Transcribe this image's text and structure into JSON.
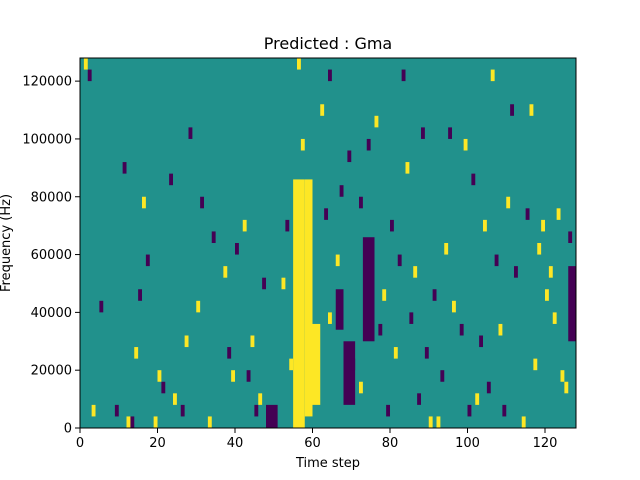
{
  "chart_data": {
    "type": "heatmap",
    "title": "Predicted : Gma",
    "xlabel": "Time step",
    "ylabel": "Frequency (Hz)",
    "xlim": [
      0,
      128
    ],
    "ylim": [
      0,
      128000
    ],
    "x_ticks": [
      0,
      20,
      40,
      60,
      80,
      100,
      120
    ],
    "x_tick_labels": [
      "0",
      "20",
      "40",
      "60",
      "80",
      "100",
      "120"
    ],
    "y_ticks": [
      0,
      20000,
      40000,
      60000,
      80000,
      100000,
      120000
    ],
    "y_tick_labels": [
      "0",
      "20000",
      "40000",
      "60000",
      "80000",
      "100000",
      "120000"
    ],
    "grid": false,
    "colormap": "viridis",
    "colors": {
      "low": "#440154",
      "mid": "#21918c",
      "high": "#fde725",
      "axes": "#000000"
    },
    "rows": 32,
    "cols": 128,
    "background_level": "mid",
    "high_bands": [
      {
        "x": [
          55,
          58
        ],
        "y": [
          0,
          86000
        ]
      },
      {
        "x": [
          58,
          60
        ],
        "y": [
          4000,
          86000
        ]
      },
      {
        "x": [
          60,
          62
        ],
        "y": [
          8000,
          36000
        ]
      }
    ],
    "low_bands": [
      {
        "x": [
          48,
          51
        ],
        "y": [
          0,
          8000
        ]
      },
      {
        "x": [
          66,
          68
        ],
        "y": [
          34000,
          48000
        ]
      },
      {
        "x": [
          68,
          71
        ],
        "y": [
          8000,
          30000
        ]
      },
      {
        "x": [
          73,
          76
        ],
        "y": [
          30000,
          66000
        ]
      },
      {
        "x": [
          126,
          128
        ],
        "y": [
          30000,
          56000
        ]
      }
    ],
    "high_cells": [
      [
        1,
        126000
      ],
      [
        3,
        6000
      ],
      [
        12,
        2000
      ],
      [
        14,
        26000
      ],
      [
        16,
        78000
      ],
      [
        19,
        2000
      ],
      [
        20,
        18000
      ],
      [
        24,
        10000
      ],
      [
        27,
        30000
      ],
      [
        30,
        42000
      ],
      [
        33,
        2000
      ],
      [
        37,
        54000
      ],
      [
        39,
        16000
      ],
      [
        42,
        70000
      ],
      [
        44,
        30000
      ],
      [
        46,
        10000
      ],
      [
        52,
        50000
      ],
      [
        54,
        22000
      ],
      [
        56,
        126000
      ],
      [
        57,
        98000
      ],
      [
        62,
        110000
      ],
      [
        64,
        38000
      ],
      [
        66,
        58000
      ],
      [
        72,
        14000
      ],
      [
        76,
        104000
      ],
      [
        78,
        46000
      ],
      [
        81,
        26000
      ],
      [
        84,
        90000
      ],
      [
        86,
        54000
      ],
      [
        90,
        2000
      ],
      [
        92,
        2000
      ],
      [
        94,
        62000
      ],
      [
        96,
        42000
      ],
      [
        99,
        98000
      ],
      [
        102,
        10000
      ],
      [
        104,
        70000
      ],
      [
        106,
        122000
      ],
      [
        108,
        34000
      ],
      [
        110,
        78000
      ],
      [
        114,
        2000
      ],
      [
        116,
        110000
      ],
      [
        117,
        22000
      ],
      [
        118,
        62000
      ],
      [
        119,
        70000
      ],
      [
        120,
        46000
      ],
      [
        121,
        54000
      ],
      [
        122,
        38000
      ],
      [
        123,
        74000
      ],
      [
        124,
        18000
      ],
      [
        125,
        14000
      ]
    ],
    "low_cells": [
      [
        2,
        122000
      ],
      [
        5,
        42000
      ],
      [
        9,
        6000
      ],
      [
        11,
        90000
      ],
      [
        13,
        2000
      ],
      [
        15,
        46000
      ],
      [
        17,
        58000
      ],
      [
        21,
        14000
      ],
      [
        23,
        86000
      ],
      [
        26,
        6000
      ],
      [
        28,
        102000
      ],
      [
        31,
        78000
      ],
      [
        34,
        66000
      ],
      [
        38,
        26000
      ],
      [
        40,
        62000
      ],
      [
        43,
        18000
      ],
      [
        45,
        6000
      ],
      [
        47,
        50000
      ],
      [
        53,
        70000
      ],
      [
        63,
        74000
      ],
      [
        64,
        122000
      ],
      [
        67,
        82000
      ],
      [
        69,
        94000
      ],
      [
        70,
        22000
      ],
      [
        72,
        78000
      ],
      [
        74,
        98000
      ],
      [
        77,
        34000
      ],
      [
        79,
        6000
      ],
      [
        80,
        70000
      ],
      [
        82,
        58000
      ],
      [
        83,
        122000
      ],
      [
        85,
        38000
      ],
      [
        87,
        10000
      ],
      [
        88,
        102000
      ],
      [
        89,
        26000
      ],
      [
        91,
        46000
      ],
      [
        93,
        18000
      ],
      [
        95,
        102000
      ],
      [
        98,
        34000
      ],
      [
        100,
        6000
      ],
      [
        101,
        86000
      ],
      [
        103,
        30000
      ],
      [
        105,
        14000
      ],
      [
        107,
        58000
      ],
      [
        109,
        6000
      ],
      [
        111,
        110000
      ],
      [
        112,
        54000
      ],
      [
        115,
        74000
      ],
      [
        126,
        66000
      ],
      [
        127,
        34000
      ]
    ]
  }
}
